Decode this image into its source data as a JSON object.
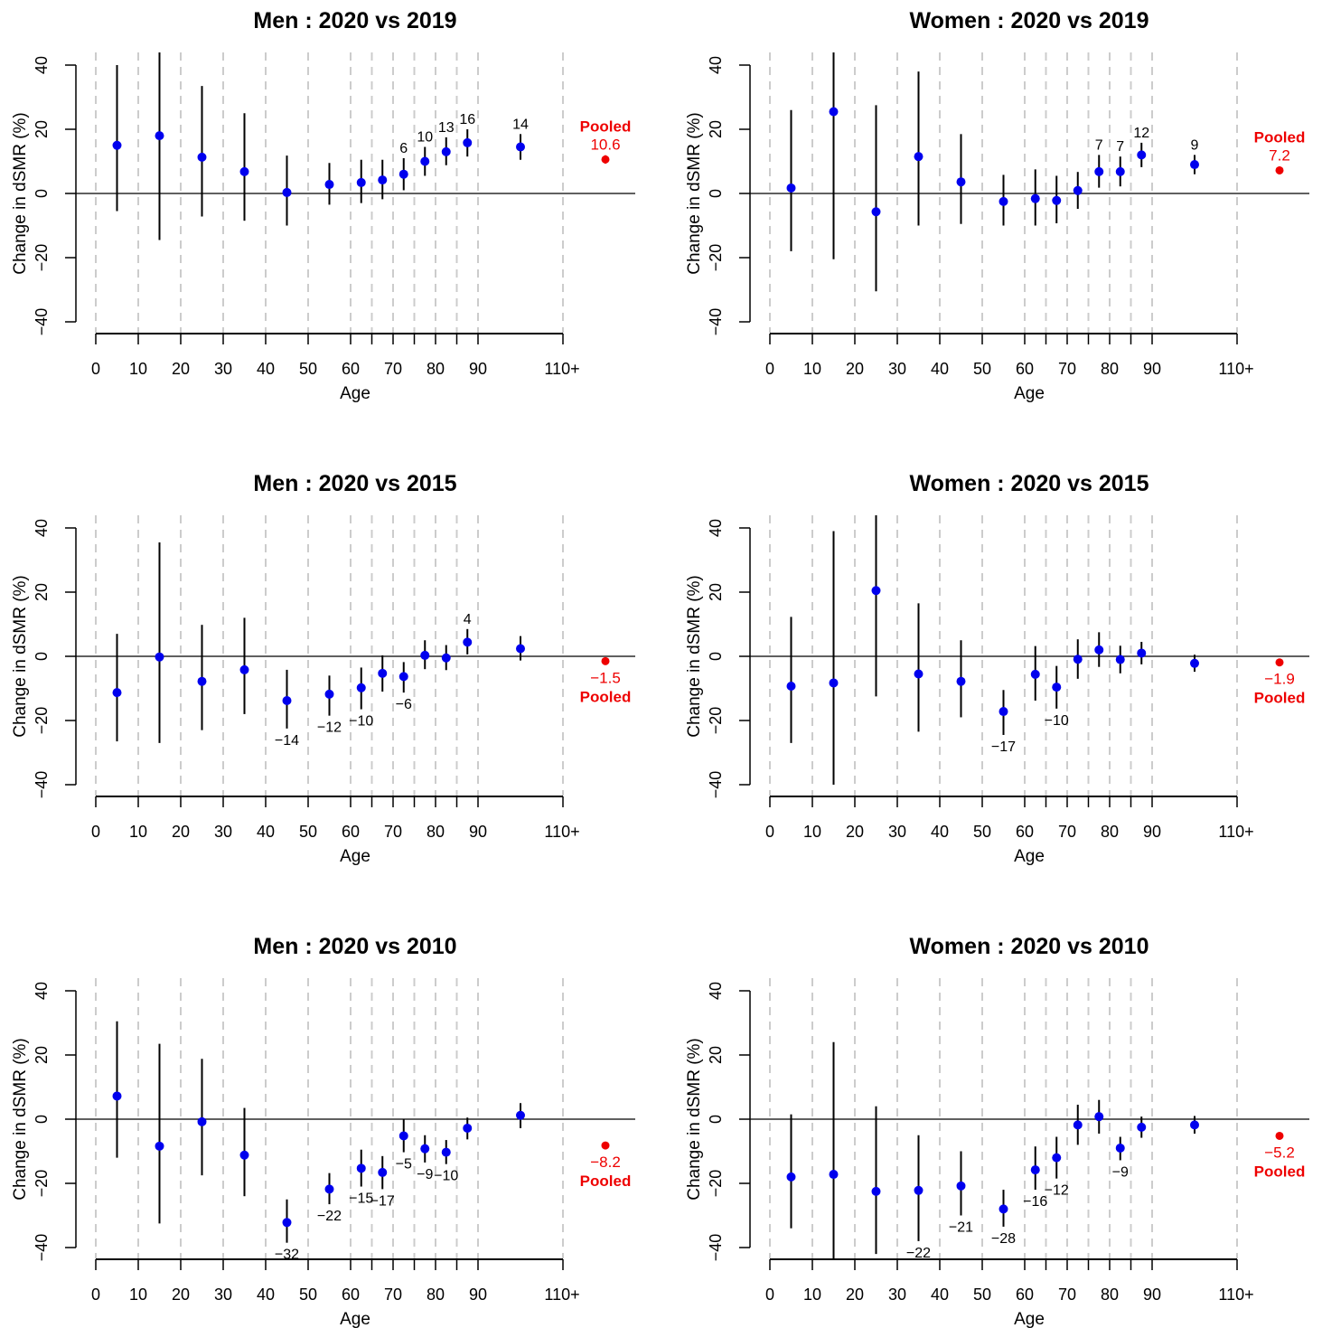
{
  "colors": {
    "points": "#0000ee",
    "pooled": "#ee0000",
    "errorbar": "#000000",
    "vgrid": "#cccccc"
  },
  "chart_data": [
    {
      "type": "scatter",
      "title": "Men : 2020 vs 2019",
      "xlabel": "Age",
      "ylabel": "Change in dSMR (%)",
      "ylim": [
        -40,
        40
      ],
      "yticks": [
        -40,
        -20,
        0,
        20,
        40
      ],
      "xtick_labels": [
        "0",
        "10",
        "20",
        "30",
        "40",
        "50",
        "60",
        "70",
        "80",
        "90",
        "110+"
      ],
      "dashed_grid_ages": [
        0,
        10,
        20,
        30,
        40,
        50,
        60,
        65,
        70,
        75,
        80,
        85,
        90,
        110
      ],
      "points": [
        {
          "age": 5,
          "y": 15,
          "lo": -5.5,
          "hi": 40,
          "label": ""
        },
        {
          "age": 15,
          "y": 18,
          "lo": -14.5,
          "hi": 44,
          "label": ""
        },
        {
          "age": 25,
          "y": 11.3,
          "lo": -7.2,
          "hi": 33.5,
          "label": ""
        },
        {
          "age": 35,
          "y": 6.8,
          "lo": -8.5,
          "hi": 25,
          "label": ""
        },
        {
          "age": 45,
          "y": 0.3,
          "lo": -10,
          "hi": 11.8,
          "label": ""
        },
        {
          "age": 55,
          "y": 2.8,
          "lo": -3.5,
          "hi": 9.5,
          "label": ""
        },
        {
          "age": 62.5,
          "y": 3.4,
          "lo": -3,
          "hi": 10.5,
          "label": ""
        },
        {
          "age": 67.5,
          "y": 4.2,
          "lo": -1.8,
          "hi": 10.5,
          "label": ""
        },
        {
          "age": 72.5,
          "y": 6,
          "lo": 1,
          "hi": 11,
          "label": "6"
        },
        {
          "age": 77.5,
          "y": 10,
          "lo": 5.5,
          "hi": 14.5,
          "label": "10"
        },
        {
          "age": 82.5,
          "y": 13,
          "lo": 8.8,
          "hi": 17.5,
          "label": "13"
        },
        {
          "age": 87.5,
          "y": 15.8,
          "lo": 11.5,
          "hi": 20,
          "label": "16"
        },
        {
          "age": 100,
          "y": 14.5,
          "lo": 10.5,
          "hi": 18.5,
          "label": "14"
        }
      ],
      "pooled": {
        "label": "Pooled",
        "value": 10.6,
        "value_text": "10.6",
        "lo": 9.3,
        "hi": 11.9
      }
    },
    {
      "type": "scatter",
      "title": "Women : 2020 vs 2019",
      "xlabel": "Age",
      "ylabel": "Change in dSMR (%)",
      "ylim": [
        -40,
        40
      ],
      "yticks": [
        -40,
        -20,
        0,
        20,
        40
      ],
      "xtick_labels": [
        "0",
        "10",
        "20",
        "30",
        "40",
        "50",
        "60",
        "70",
        "80",
        "90",
        "110+"
      ],
      "dashed_grid_ages": [
        0,
        10,
        20,
        30,
        40,
        50,
        60,
        65,
        70,
        75,
        80,
        85,
        90,
        110
      ],
      "points": [
        {
          "age": 5,
          "y": 1.7,
          "lo": -18,
          "hi": 26,
          "label": ""
        },
        {
          "age": 15,
          "y": 25.5,
          "lo": -20.5,
          "hi": 44,
          "label": ""
        },
        {
          "age": 25,
          "y": -5.7,
          "lo": -30.5,
          "hi": 27.5,
          "label": ""
        },
        {
          "age": 35,
          "y": 11.5,
          "lo": -10,
          "hi": 38,
          "label": ""
        },
        {
          "age": 45,
          "y": 3.6,
          "lo": -9.5,
          "hi": 18.5,
          "label": ""
        },
        {
          "age": 55,
          "y": -2.5,
          "lo": -10,
          "hi": 5.8,
          "label": ""
        },
        {
          "age": 62.5,
          "y": -1.6,
          "lo": -10,
          "hi": 7.5,
          "label": ""
        },
        {
          "age": 67.5,
          "y": -2.2,
          "lo": -9.3,
          "hi": 5.5,
          "label": ""
        },
        {
          "age": 72.5,
          "y": 0.9,
          "lo": -4.8,
          "hi": 6.7,
          "label": ""
        },
        {
          "age": 77.5,
          "y": 6.8,
          "lo": 1.8,
          "hi": 12,
          "label": "7"
        },
        {
          "age": 82.5,
          "y": 6.8,
          "lo": 2.2,
          "hi": 11.5,
          "label": "7"
        },
        {
          "age": 87.5,
          "y": 12,
          "lo": 8.2,
          "hi": 15.8,
          "label": "12"
        },
        {
          "age": 100,
          "y": 9,
          "lo": 6,
          "hi": 12,
          "label": "9"
        }
      ],
      "pooled": {
        "label": "Pooled",
        "value": 7.2,
        "value_text": "7.2",
        "lo": 6,
        "hi": 8.4
      }
    },
    {
      "type": "scatter",
      "title": "Men : 2020 vs 2015",
      "xlabel": "Age",
      "ylabel": "Change in dSMR (%)",
      "ylim": [
        -40,
        40
      ],
      "yticks": [
        -40,
        -20,
        0,
        20,
        40
      ],
      "xtick_labels": [
        "0",
        "10",
        "20",
        "30",
        "40",
        "50",
        "60",
        "70",
        "80",
        "90",
        "110+"
      ],
      "dashed_grid_ages": [
        0,
        10,
        20,
        30,
        40,
        50,
        60,
        65,
        70,
        75,
        80,
        85,
        90,
        110
      ],
      "points": [
        {
          "age": 5,
          "y": -11.3,
          "lo": -26.5,
          "hi": 7,
          "label": ""
        },
        {
          "age": 15,
          "y": -0.2,
          "lo": -27,
          "hi": 35.5,
          "label": ""
        },
        {
          "age": 25,
          "y": -7.8,
          "lo": -23,
          "hi": 9.8,
          "label": ""
        },
        {
          "age": 35,
          "y": -4.2,
          "lo": -18,
          "hi": 12,
          "label": ""
        },
        {
          "age": 45,
          "y": -13.8,
          "lo": -22.5,
          "hi": -4.2,
          "label": "−14"
        },
        {
          "age": 55,
          "y": -11.8,
          "lo": -18.5,
          "hi": -6,
          "label": "−12"
        },
        {
          "age": 62.5,
          "y": -9.8,
          "lo": -16.5,
          "hi": -3.5,
          "label": "−10"
        },
        {
          "age": 67.5,
          "y": -5.3,
          "lo": -11,
          "hi": 0.3,
          "label": ""
        },
        {
          "age": 72.5,
          "y": -6.3,
          "lo": -11.3,
          "hi": -1.8,
          "label": "−6"
        },
        {
          "age": 77.5,
          "y": 0.3,
          "lo": -4,
          "hi": 5,
          "label": ""
        },
        {
          "age": 82.5,
          "y": -0.5,
          "lo": -4.3,
          "hi": 3.5,
          "label": ""
        },
        {
          "age": 87.5,
          "y": 4.4,
          "lo": 0.6,
          "hi": 8.5,
          "label": "4"
        },
        {
          "age": 100,
          "y": 2.4,
          "lo": -1.3,
          "hi": 6.3,
          "label": ""
        }
      ],
      "pooled": {
        "label": "Pooled",
        "value": -1.5,
        "value_text": "−1.5",
        "lo": -2.5,
        "hi": -0.5
      }
    },
    {
      "type": "scatter",
      "title": "Women : 2020 vs 2015",
      "xlabel": "Age",
      "ylabel": "Change in dSMR (%)",
      "ylim": [
        -40,
        40
      ],
      "yticks": [
        -40,
        -20,
        0,
        20,
        40
      ],
      "xtick_labels": [
        "0",
        "10",
        "20",
        "30",
        "40",
        "50",
        "60",
        "70",
        "80",
        "90",
        "110+"
      ],
      "dashed_grid_ages": [
        0,
        10,
        20,
        30,
        40,
        50,
        60,
        65,
        70,
        75,
        80,
        85,
        90,
        110
      ],
      "points": [
        {
          "age": 5,
          "y": -9.3,
          "lo": -27,
          "hi": 12.3,
          "label": ""
        },
        {
          "age": 15,
          "y": -8.3,
          "lo": -40,
          "hi": 39,
          "label": ""
        },
        {
          "age": 25,
          "y": 20.5,
          "lo": -12.5,
          "hi": 44,
          "label": ""
        },
        {
          "age": 35,
          "y": -5.5,
          "lo": -23.5,
          "hi": 16.5,
          "label": ""
        },
        {
          "age": 45,
          "y": -7.8,
          "lo": -19,
          "hi": 5,
          "label": ""
        },
        {
          "age": 55,
          "y": -17.2,
          "lo": -24.5,
          "hi": -10.5,
          "label": "−17"
        },
        {
          "age": 62.5,
          "y": -5.6,
          "lo": -13.8,
          "hi": 3.2,
          "label": ""
        },
        {
          "age": 67.5,
          "y": -9.6,
          "lo": -16.3,
          "hi": -3,
          "label": "−10"
        },
        {
          "age": 72.5,
          "y": -0.9,
          "lo": -7,
          "hi": 5.3,
          "label": ""
        },
        {
          "age": 77.5,
          "y": 2,
          "lo": -3.3,
          "hi": 7.5,
          "label": ""
        },
        {
          "age": 82.5,
          "y": -1,
          "lo": -5.3,
          "hi": 3.3,
          "label": ""
        },
        {
          "age": 87.5,
          "y": 1,
          "lo": -2.5,
          "hi": 4.5,
          "label": ""
        },
        {
          "age": 100,
          "y": -2.2,
          "lo": -4.8,
          "hi": 0.5,
          "label": ""
        }
      ],
      "pooled": {
        "label": "Pooled",
        "value": -1.9,
        "value_text": "−1.9",
        "lo": -2.9,
        "hi": -0.9
      }
    },
    {
      "type": "scatter",
      "title": "Men : 2020 vs 2010",
      "xlabel": "Age",
      "ylabel": "Change in dSMR (%)",
      "ylim": [
        -40,
        40
      ],
      "yticks": [
        -40,
        -20,
        0,
        20,
        40
      ],
      "xtick_labels": [
        "0",
        "10",
        "20",
        "30",
        "40",
        "50",
        "60",
        "70",
        "80",
        "90",
        "110+"
      ],
      "dashed_grid_ages": [
        0,
        10,
        20,
        30,
        40,
        50,
        60,
        65,
        70,
        75,
        80,
        85,
        90,
        110
      ],
      "points": [
        {
          "age": 5,
          "y": 7.2,
          "lo": -12,
          "hi": 30.5,
          "label": ""
        },
        {
          "age": 15,
          "y": -8.4,
          "lo": -32.5,
          "hi": 23.5,
          "label": ""
        },
        {
          "age": 25,
          "y": -0.8,
          "lo": -17.5,
          "hi": 18.8,
          "label": ""
        },
        {
          "age": 35,
          "y": -11.2,
          "lo": -24,
          "hi": 3.5,
          "label": ""
        },
        {
          "age": 45,
          "y": -32.2,
          "lo": -38.5,
          "hi": -25,
          "label": "−32"
        },
        {
          "age": 55,
          "y": -21.8,
          "lo": -26.5,
          "hi": -16.8,
          "label": "−22"
        },
        {
          "age": 62.5,
          "y": -15.3,
          "lo": -21,
          "hi": -9.5,
          "label": "−15"
        },
        {
          "age": 67.5,
          "y": -16.6,
          "lo": -21.8,
          "hi": -11.5,
          "label": "−17"
        },
        {
          "age": 72.5,
          "y": -5.2,
          "lo": -10.3,
          "hi": 0,
          "label": "−5"
        },
        {
          "age": 77.5,
          "y": -9.2,
          "lo": -13.5,
          "hi": -5,
          "label": "−9"
        },
        {
          "age": 82.5,
          "y": -10.3,
          "lo": -14,
          "hi": -6.5,
          "label": "−10"
        },
        {
          "age": 87.5,
          "y": -2.8,
          "lo": -6.3,
          "hi": 0.5,
          "label": ""
        },
        {
          "age": 100,
          "y": 1.2,
          "lo": -2.8,
          "hi": 5,
          "label": ""
        }
      ],
      "pooled": {
        "label": "Pooled",
        "value": -8.2,
        "value_text": "−8.2",
        "lo": -9.3,
        "hi": -7.1
      }
    },
    {
      "type": "scatter",
      "title": "Women : 2020 vs 2010",
      "xlabel": "Age",
      "ylabel": "Change in dSMR (%)",
      "ylim": [
        -40,
        40
      ],
      "yticks": [
        -40,
        -20,
        0,
        20,
        40
      ],
      "xtick_labels": [
        "0",
        "10",
        "20",
        "30",
        "40",
        "50",
        "60",
        "70",
        "80",
        "90",
        "110+"
      ],
      "dashed_grid_ages": [
        0,
        10,
        20,
        30,
        40,
        50,
        60,
        65,
        70,
        75,
        80,
        85,
        90,
        110
      ],
      "points": [
        {
          "age": 5,
          "y": -18,
          "lo": -34,
          "hi": 1.5,
          "label": ""
        },
        {
          "age": 15,
          "y": -17.2,
          "lo": -44,
          "hi": 24,
          "label": ""
        },
        {
          "age": 25,
          "y": -22.5,
          "lo": -42,
          "hi": 4,
          "label": ""
        },
        {
          "age": 35,
          "y": -22.2,
          "lo": -38,
          "hi": -5,
          "label": "−22"
        },
        {
          "age": 45,
          "y": -20.8,
          "lo": -30,
          "hi": -10,
          "label": "−21"
        },
        {
          "age": 55,
          "y": -28,
          "lo": -33.5,
          "hi": -22,
          "label": "−28"
        },
        {
          "age": 62.5,
          "y": -15.8,
          "lo": -22,
          "hi": -8.5,
          "label": "−16"
        },
        {
          "age": 67.5,
          "y": -12,
          "lo": -18.5,
          "hi": -5.5,
          "label": "−12"
        },
        {
          "age": 72.5,
          "y": -1.8,
          "lo": -8,
          "hi": 4.5,
          "label": ""
        },
        {
          "age": 77.5,
          "y": 0.8,
          "lo": -4.5,
          "hi": 6,
          "label": ""
        },
        {
          "age": 82.5,
          "y": -9,
          "lo": -12.8,
          "hi": -5.5,
          "label": "−9"
        },
        {
          "age": 87.5,
          "y": -2.5,
          "lo": -5.8,
          "hi": 0.8,
          "label": ""
        },
        {
          "age": 100,
          "y": -1.8,
          "lo": -4.5,
          "hi": 1,
          "label": ""
        }
      ],
      "pooled": {
        "label": "Pooled",
        "value": -5.2,
        "value_text": "−5.2",
        "lo": -6.1,
        "hi": -4.3
      }
    }
  ]
}
